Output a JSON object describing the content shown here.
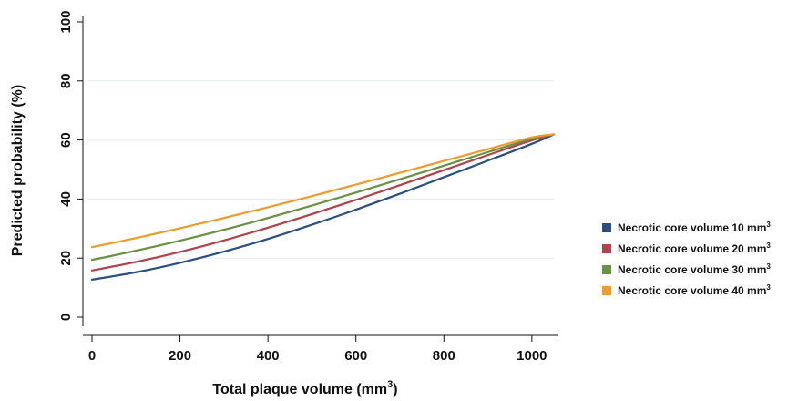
{
  "chart_data": {
    "type": "line",
    "xlabel": "Total plaque volume (mm",
    "xlabel_sup": "3",
    "xlabel_end": ")",
    "ylabel": "Predicted probability (%)",
    "xlim": [
      0,
      1050
    ],
    "ylim": [
      0,
      100
    ],
    "xticks": [
      0,
      200,
      400,
      600,
      800,
      1000
    ],
    "yticks": [
      0,
      20,
      40,
      60,
      80,
      100
    ],
    "grid": "horizontal",
    "legend_position": "right",
    "x": [
      0,
      100,
      200,
      300,
      400,
      500,
      600,
      700,
      800,
      900,
      1000,
      1050
    ],
    "series": [
      {
        "name": "Necrotic core volume 10 mm",
        "name_sup": "3",
        "color": "#2b4f7e",
        "values": [
          12.7,
          15.2,
          18.4,
          22.2,
          26.5,
          31.3,
          36.4,
          41.8,
          47.4,
          53.0,
          58.7,
          61.9
        ]
      },
      {
        "name": "Necrotic core volume 20 mm",
        "name_sup": "3",
        "color": "#b0424b",
        "values": [
          15.8,
          18.7,
          22.1,
          26.0,
          30.3,
          34.9,
          39.7,
          44.7,
          49.8,
          54.9,
          59.9,
          61.9
        ]
      },
      {
        "name": "Necrotic core volume 30 mm",
        "name_sup": "3",
        "color": "#6a9142",
        "values": [
          19.4,
          22.5,
          25.9,
          29.6,
          33.6,
          37.8,
          42.2,
          46.7,
          51.3,
          55.9,
          60.4,
          61.9
        ]
      },
      {
        "name": "Necrotic core volume 40 mm",
        "name_sup": "3",
        "color": "#ef9a2d",
        "values": [
          23.7,
          26.8,
          30.1,
          33.6,
          37.2,
          41.0,
          44.9,
          48.9,
          52.9,
          56.9,
          60.9,
          61.9
        ]
      }
    ]
  }
}
